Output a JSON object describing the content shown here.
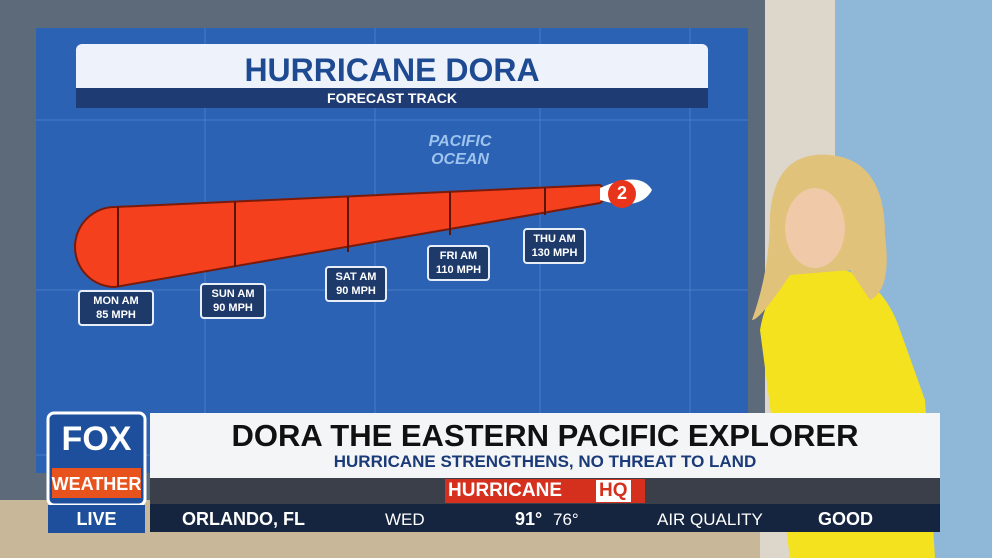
{
  "map": {
    "title": "HURRICANE DORA",
    "subtitle": "FORECAST TRACK",
    "ocean": [
      "PACIFIC",
      "OCEAN"
    ],
    "storm_category": "2",
    "points": [
      {
        "day": "MON AM",
        "wind": "85 MPH"
      },
      {
        "day": "SUN AM",
        "wind": "90 MPH"
      },
      {
        "day": "SAT AM",
        "wind": "90 MPH"
      },
      {
        "day": "FRI AM",
        "wind": "110 MPH"
      },
      {
        "day": "THU AM",
        "wind": "130 MPH"
      }
    ]
  },
  "logo": {
    "brand": "FOX",
    "sub": "WEATHER",
    "status": "LIVE"
  },
  "lower_third": {
    "headline": "DORA THE EASTERN PACIFIC EXPLORER",
    "subhead": "HURRICANE STRENGTHENS, NO THREAT TO LAND",
    "segment": [
      "HURRICANE",
      "HQ"
    ]
  },
  "ticker": {
    "location": "ORLANDO, FL",
    "day": "WED",
    "high": "91°",
    "low": "76°",
    "aq_label": "AIR QUALITY",
    "aq_value": "GOOD"
  }
}
